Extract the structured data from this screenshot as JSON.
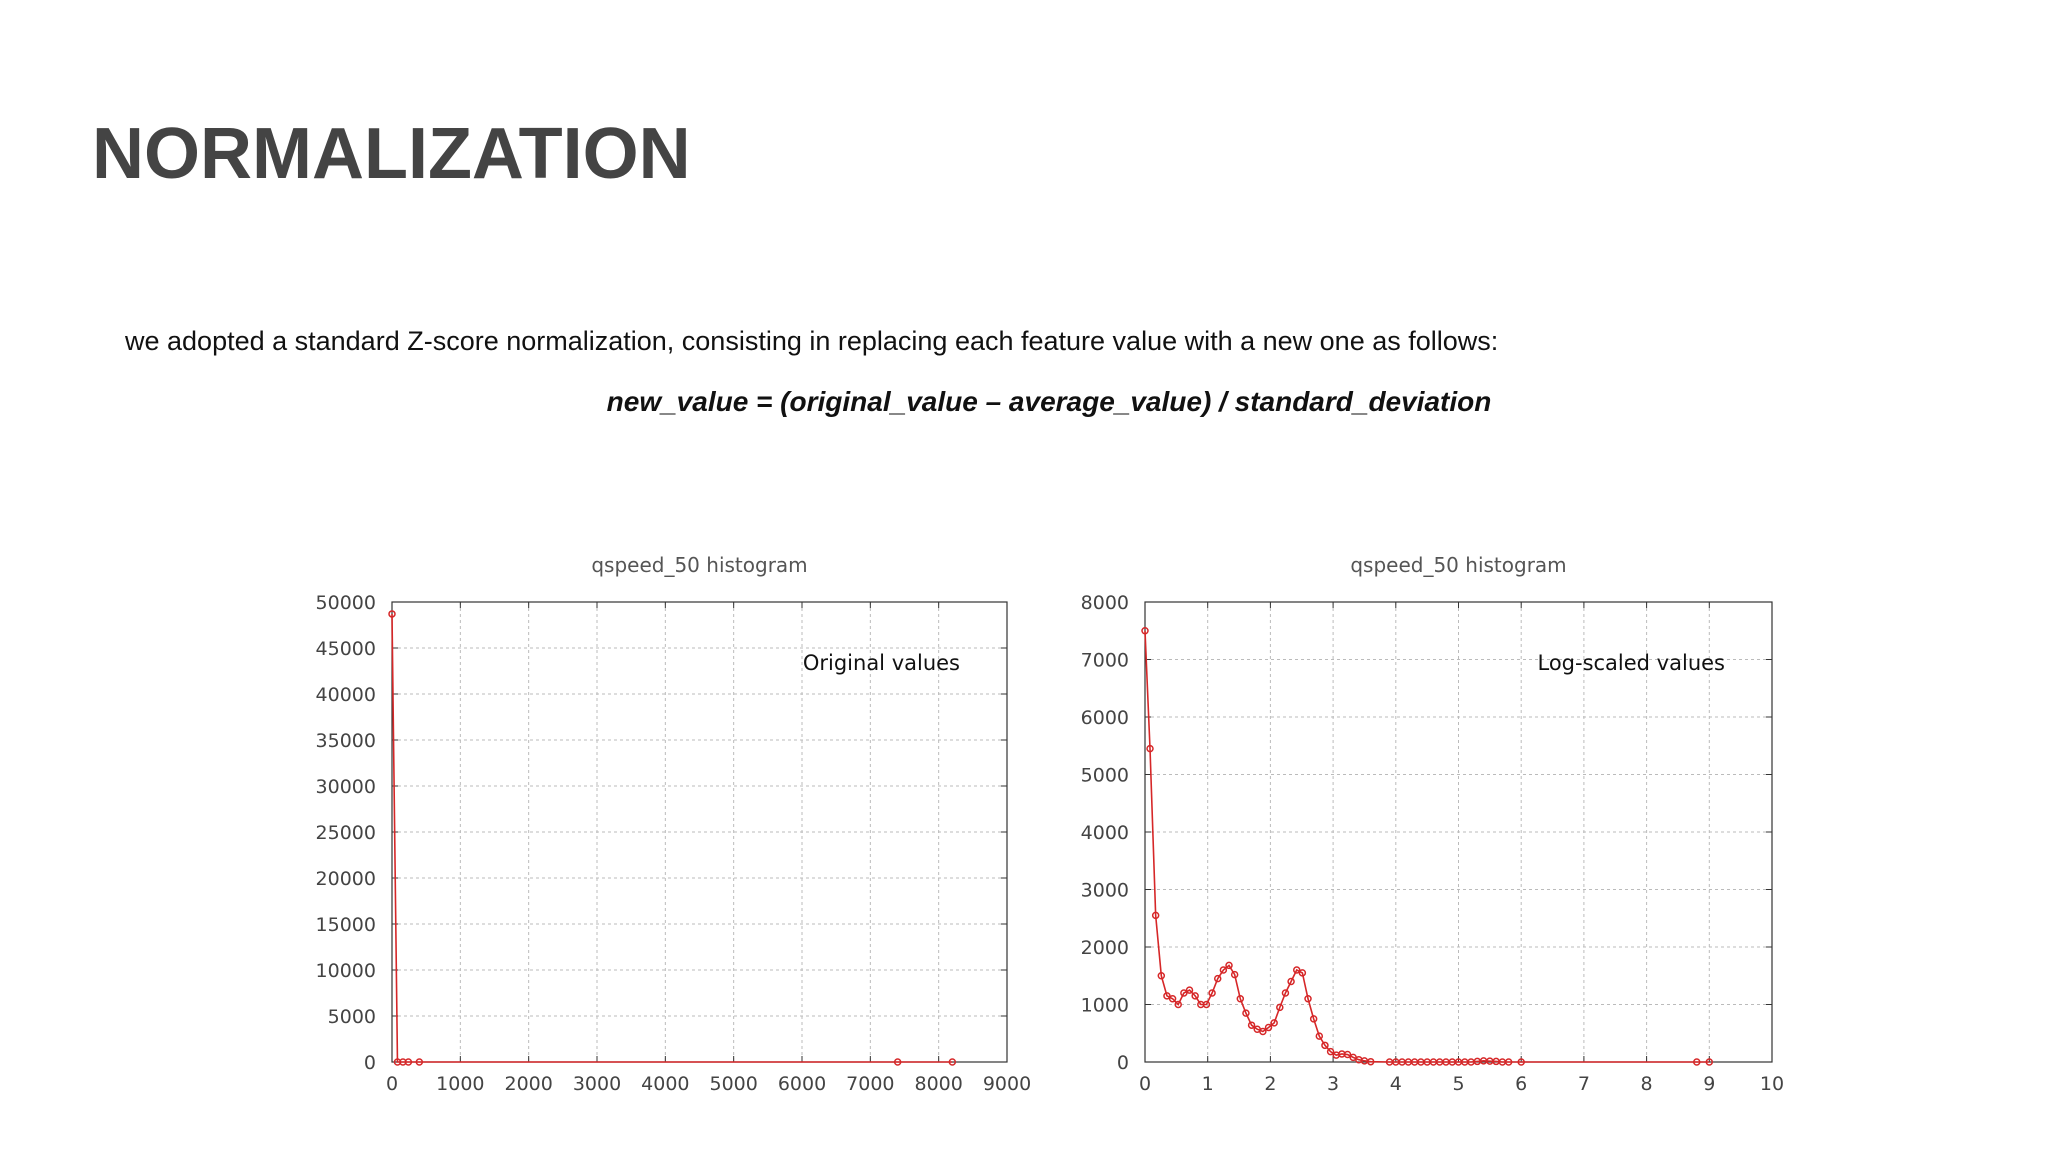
{
  "slide": {
    "title": "NORMALIZATION",
    "body": "we adopted a standard Z-score normalization, consisting in replacing each feature value with a new one as follows:",
    "formula": "new_value = (original_value – average_value) / standard_deviation"
  },
  "colors": {
    "series": "#d62728",
    "title": "#444444",
    "grid": "#bbbbbb"
  },
  "chart_data": [
    {
      "type": "line",
      "title": "qspeed_50 histogram",
      "annotation": "Original values",
      "xlim": [
        0,
        9000
      ],
      "ylim": [
        0,
        50000
      ],
      "xticks": [
        0,
        1000,
        2000,
        3000,
        4000,
        5000,
        6000,
        7000,
        8000,
        9000
      ],
      "yticks": [
        0,
        5000,
        10000,
        15000,
        20000,
        25000,
        30000,
        35000,
        40000,
        45000,
        50000
      ],
      "grid": true,
      "series": [
        {
          "points": [
            [
              0,
              48700
            ],
            [
              80,
              0
            ],
            [
              160,
              0
            ],
            [
              240,
              0
            ],
            [
              400,
              0
            ],
            [
              7400,
              0
            ],
            [
              8200,
              0
            ]
          ]
        }
      ]
    },
    {
      "type": "line",
      "title": "qspeed_50 histogram",
      "annotation": "Log-scaled values",
      "xlim": [
        0,
        10
      ],
      "ylim": [
        0,
        8000
      ],
      "xticks": [
        0,
        1,
        2,
        3,
        4,
        5,
        6,
        7,
        8,
        9,
        10
      ],
      "yticks": [
        0,
        1000,
        2000,
        3000,
        4000,
        5000,
        6000,
        7000,
        8000
      ],
      "grid": true,
      "series": [
        {
          "points": [
            [
              0,
              7500
            ],
            [
              0.08,
              5450
            ],
            [
              0.17,
              2550
            ],
            [
              0.26,
              1500
            ],
            [
              0.35,
              1150
            ],
            [
              0.44,
              1100
            ],
            [
              0.53,
              1000
            ],
            [
              0.62,
              1200
            ],
            [
              0.71,
              1250
            ],
            [
              0.8,
              1150
            ],
            [
              0.89,
              1000
            ],
            [
              0.98,
              1000
            ],
            [
              1.07,
              1200
            ],
            [
              1.16,
              1450
            ],
            [
              1.25,
              1600
            ],
            [
              1.34,
              1680
            ],
            [
              1.43,
              1520
            ],
            [
              1.52,
              1100
            ],
            [
              1.61,
              850
            ],
            [
              1.7,
              640
            ],
            [
              1.79,
              570
            ],
            [
              1.88,
              530
            ],
            [
              1.97,
              600
            ],
            [
              2.06,
              680
            ],
            [
              2.15,
              950
            ],
            [
              2.24,
              1200
            ],
            [
              2.33,
              1400
            ],
            [
              2.42,
              1600
            ],
            [
              2.51,
              1550
            ],
            [
              2.6,
              1100
            ],
            [
              2.69,
              750
            ],
            [
              2.78,
              450
            ],
            [
              2.87,
              290
            ],
            [
              2.96,
              180
            ],
            [
              3.05,
              120
            ],
            [
              3.14,
              140
            ],
            [
              3.23,
              130
            ],
            [
              3.32,
              80
            ],
            [
              3.41,
              40
            ],
            [
              3.5,
              20
            ],
            [
              3.6,
              5
            ],
            [
              3.9,
              0
            ],
            [
              4.0,
              0
            ],
            [
              4.1,
              0
            ],
            [
              4.2,
              0
            ],
            [
              4.3,
              0
            ],
            [
              4.4,
              0
            ],
            [
              4.5,
              0
            ],
            [
              4.6,
              0
            ],
            [
              4.7,
              0
            ],
            [
              4.8,
              0
            ],
            [
              4.9,
              0
            ],
            [
              5.0,
              0
            ],
            [
              5.1,
              0
            ],
            [
              5.2,
              0
            ],
            [
              5.3,
              10
            ],
            [
              5.4,
              20
            ],
            [
              5.5,
              15
            ],
            [
              5.6,
              10
            ],
            [
              5.7,
              0
            ],
            [
              5.8,
              0
            ],
            [
              6.0,
              0
            ],
            [
              8.8,
              0
            ],
            [
              9.0,
              0
            ]
          ]
        }
      ]
    }
  ]
}
